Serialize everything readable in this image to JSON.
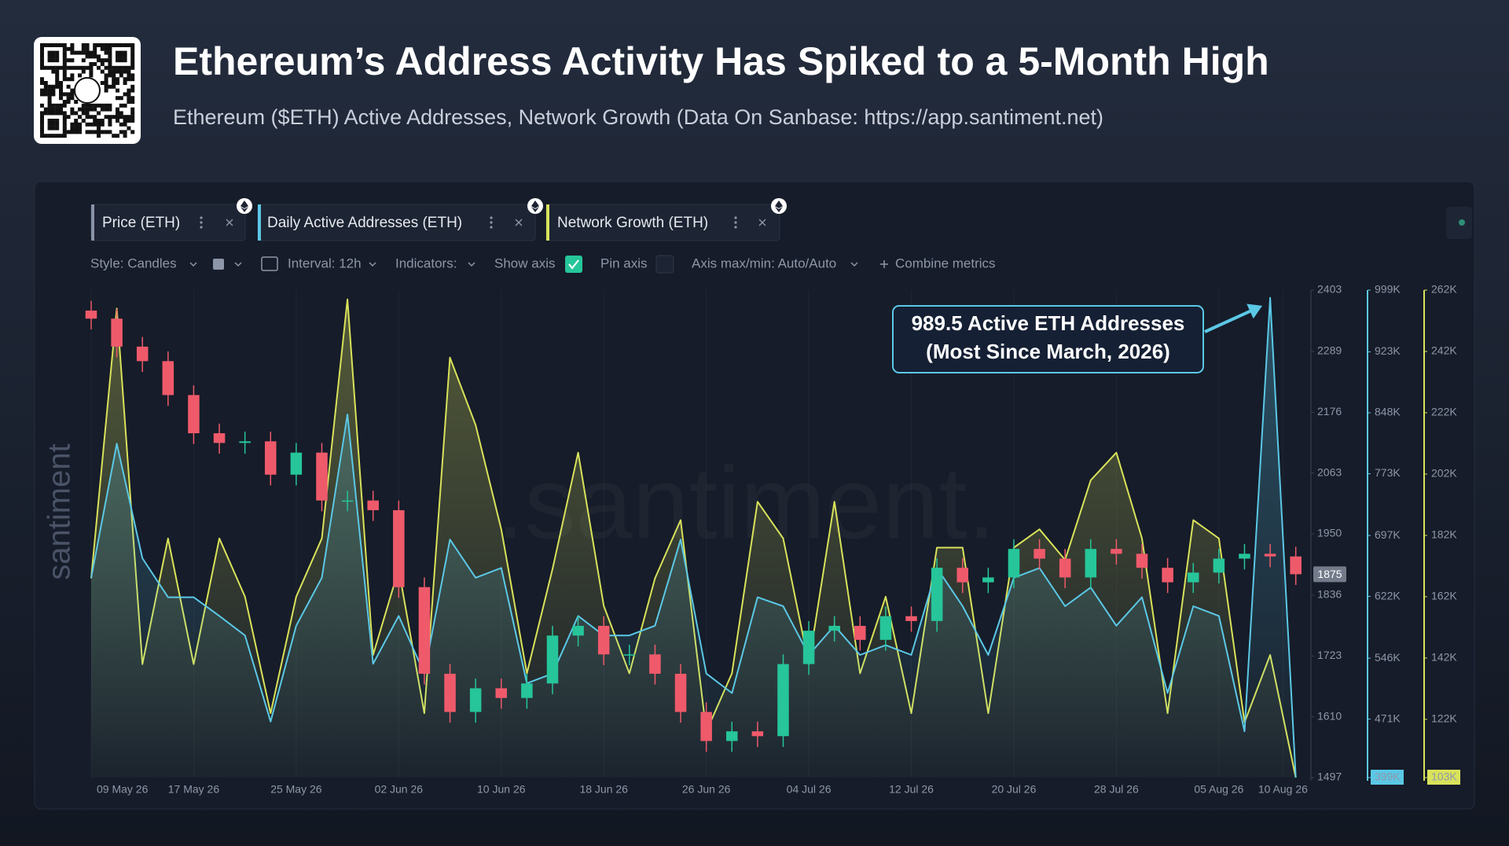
{
  "header": {
    "title": "Ethereum’s Address Activity Has Spiked to a 5-Month High",
    "subtitle": "Ethereum ($ETH) Active Addresses, Network Growth (Data On Sanbase: https://app.santiment.net)"
  },
  "toolbar": [
    "Style: Candles",
    "Interval: 12h",
    "Indicators:",
    "Show axis",
    "Pin axis",
    "Axis max/min: Auto/Auto",
    "Combine metrics"
  ],
  "watermarks": [
    "santiment",
    ".santiment."
  ],
  "chart_data": {
    "type": "candlestick",
    "x": [
      "2026-05-09",
      "2026-05-11",
      "2026-05-13",
      "2026-05-15",
      "2026-05-17",
      "2026-05-19",
      "2026-05-21",
      "2026-05-23",
      "2026-05-25",
      "2026-05-27",
      "2026-05-29",
      "2026-05-31",
      "2026-06-02",
      "2026-06-04",
      "2026-06-06",
      "2026-06-08",
      "2026-06-10",
      "2026-06-12",
      "2026-06-14",
      "2026-06-16",
      "2026-06-18",
      "2026-06-20",
      "2026-06-22",
      "2026-06-24",
      "2026-06-26",
      "2026-06-28",
      "2026-06-30",
      "2026-07-02",
      "2026-07-04",
      "2026-07-06",
      "2026-07-08",
      "2026-07-10",
      "2026-07-12",
      "2026-07-14",
      "2026-07-16",
      "2026-07-18",
      "2026-07-20",
      "2026-07-22",
      "2026-07-24",
      "2026-07-26",
      "2026-07-28",
      "2026-07-30",
      "2026-08-01",
      "2026-08-03",
      "2026-08-05",
      "2026-08-07",
      "2026-08-09",
      "2026-08-11"
    ],
    "xlim": [
      "2026-05-09",
      "2026-08-12"
    ],
    "xticks": [
      {
        "value": "2026-05-09",
        "label": "09 May 26"
      },
      {
        "value": "2026-05-17",
        "label": "17 May 26"
      },
      {
        "value": "2026-05-25",
        "label": "25 May 26"
      },
      {
        "value": "2026-06-02",
        "label": "02 Jun 26"
      },
      {
        "value": "2026-06-10",
        "label": "10 Jun 26"
      },
      {
        "value": "2026-06-18",
        "label": "18 Jun 26"
      },
      {
        "value": "2026-06-26",
        "label": "26 Jun 26"
      },
      {
        "value": "2026-07-04",
        "label": "04 Jul 26"
      },
      {
        "value": "2026-07-12",
        "label": "12 Jul 26"
      },
      {
        "value": "2026-07-20",
        "label": "20 Jul 26"
      },
      {
        "value": "2026-07-28",
        "label": "28 Jul 26"
      },
      {
        "value": "2026-08-05",
        "label": "05 Aug 26"
      },
      {
        "value": "2026-08-10",
        "label": "10 Aug 26"
      }
    ],
    "ylim": [
      1497,
      2403
    ],
    "yticks": [
      1497,
      1610,
      1723,
      1836,
      1950,
      2063,
      2176,
      2289,
      2403
    ],
    "y2lim": [
      399000,
      999000
    ],
    "y2ticks": [
      {
        "value": 399000,
        "label": "399K"
      },
      {
        "value": 471000,
        "label": "471K"
      },
      {
        "value": 546000,
        "label": "546K"
      },
      {
        "value": 622000,
        "label": "622K"
      },
      {
        "value": 697000,
        "label": "697K"
      },
      {
        "value": 773000,
        "label": "773K"
      },
      {
        "value": 848000,
        "label": "848K"
      },
      {
        "value": 923000,
        "label": "923K"
      },
      {
        "value": 999000,
        "label": "999K"
      }
    ],
    "y3lim": [
      103000,
      262000
    ],
    "y3ticks": [
      {
        "value": 103000,
        "label": "103K"
      },
      {
        "value": 122000,
        "label": "122K"
      },
      {
        "value": 142000,
        "label": "142K"
      },
      {
        "value": 162000,
        "label": "162K"
      },
      {
        "value": 182000,
        "label": "182K"
      },
      {
        "value": 202000,
        "label": "202K"
      },
      {
        "value": 222000,
        "label": "222K"
      },
      {
        "value": 242000,
        "label": "242K"
      },
      {
        "value": 262000,
        "label": "262K"
      }
    ],
    "grid": "x",
    "series": [
      {
        "name": "Price (ETH)",
        "type": "candlestick",
        "color": "#8a93a6",
        "up_color": "#26c59a",
        "down_color": "#ef5a6b",
        "open": [
          2365,
          2350,
          2298,
          2271,
          2208,
          2137,
          2119,
          2122,
          2060,
          2101,
          2012,
          2012,
          1994,
          1851,
          1690,
          1619,
          1663,
          1645,
          1672,
          1761,
          1779,
          1726,
          1726,
          1690,
          1619,
          1565,
          1583,
          1574,
          1708,
          1770,
          1779,
          1753,
          1797,
          1788,
          1887,
          1860,
          1869,
          1922,
          1904,
          1869,
          1922,
          1913,
          1887,
          1860,
          1878,
          1904,
          1913,
          1908
        ],
        "high": [
          2383,
          2368,
          2316,
          2289,
          2226,
          2155,
          2140,
          2140,
          2119,
          2119,
          2030,
          2030,
          2012,
          1869,
          1708,
          1681,
          1681,
          1690,
          1779,
          1797,
          1797,
          1744,
          1744,
          1708,
          1637,
          1601,
          1601,
          1726,
          1788,
          1797,
          1797,
          1815,
          1815,
          1905,
          1905,
          1887,
          1940,
          1940,
          1922,
          1940,
          1940,
          1931,
          1905,
          1896,
          1922,
          1931,
          1931,
          1926
        ],
        "low": [
          2330,
          2278,
          2251,
          2188,
          2117,
          2099,
          2099,
          2040,
          2040,
          1992,
          1992,
          1974,
          1831,
          1670,
          1599,
          1599,
          1625,
          1625,
          1652,
          1741,
          1706,
          1706,
          1670,
          1599,
          1545,
          1545,
          1554,
          1554,
          1688,
          1750,
          1733,
          1733,
          1768,
          1768,
          1840,
          1840,
          1849,
          1884,
          1849,
          1849,
          1893,
          1867,
          1840,
          1840,
          1858,
          1884,
          1888,
          1855
        ],
        "close": [
          2350,
          2298,
          2271,
          2208,
          2137,
          2119,
          2122,
          2060,
          2101,
          2012,
          2012,
          1994,
          1851,
          1690,
          1619,
          1663,
          1645,
          1672,
          1761,
          1779,
          1726,
          1726,
          1690,
          1619,
          1565,
          1583,
          1574,
          1708,
          1770,
          1779,
          1753,
          1797,
          1788,
          1887,
          1860,
          1869,
          1922,
          1904,
          1869,
          1922,
          1913,
          1887,
          1860,
          1878,
          1904,
          1913,
          1908,
          1875
        ]
      },
      {
        "name": "Daily Active Addresses (ETH)",
        "type": "area",
        "axis": "y2",
        "color": "#5bc8e6",
        "values": [
          645000,
          810000,
          669000,
          621000,
          621000,
          598000,
          574000,
          468000,
          586000,
          645000,
          846000,
          539000,
          598000,
          527000,
          692000,
          645000,
          657000,
          515000,
          527000,
          598000,
          574000,
          574000,
          586000,
          692000,
          527000,
          503000,
          621000,
          610000,
          550000,
          586000,
          550000,
          562000,
          550000,
          657000,
          610000,
          550000,
          645000,
          657000,
          610000,
          633000,
          586000,
          621000,
          503000,
          610000,
          598000,
          456000,
          989500,
          399000
        ]
      },
      {
        "name": "Network Growth (ETH)",
        "type": "area",
        "axis": "y3",
        "color": "#d9e25a",
        "values": [
          168000,
          256000,
          140000,
          181000,
          140000,
          181000,
          162000,
          124000,
          162000,
          181000,
          259000,
          143000,
          171000,
          124000,
          240000,
          218000,
          184000,
          137000,
          171000,
          209000,
          159000,
          137000,
          168000,
          187000,
          118000,
          137000,
          193000,
          181000,
          140000,
          193000,
          137000,
          162000,
          124000,
          178000,
          178000,
          124000,
          178000,
          184000,
          174000,
          200000,
          209000,
          181000,
          124000,
          187000,
          181000,
          121000,
          143000,
          103000
        ]
      }
    ],
    "annotation": {
      "lines": [
        "989.5 Active ETH Addresses",
        "(Most Since March, 2026)"
      ]
    }
  }
}
